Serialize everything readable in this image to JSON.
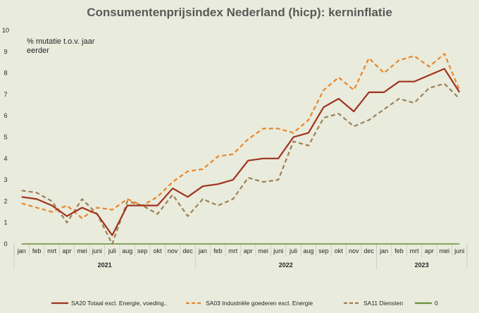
{
  "chart_data": {
    "type": "line",
    "title": "Consumentenprijsindex Nederland (hicp): kerninflatie",
    "ylabel_lines": [
      "% mutatie t.o.v. jaar",
      "eerder"
    ],
    "ylim": [
      0,
      10
    ],
    "yticks": [
      "0",
      "1",
      "2",
      "3",
      "4",
      "5",
      "6",
      "7",
      "8",
      "9",
      "10"
    ],
    "categories": [
      "jan",
      "feb",
      "mrt",
      "apr",
      "mei",
      "juni",
      "juli",
      "aug",
      "sep",
      "okt",
      "nov",
      "dec",
      "jan",
      "feb",
      "mrt",
      "apr",
      "mei",
      "juni",
      "juli",
      "aug",
      "sep",
      "okt",
      "nov",
      "dec",
      "jan",
      "feb",
      "mrt",
      "apr",
      "mei",
      "juni"
    ],
    "years": [
      {
        "label": "2021",
        "start": 0,
        "end": 11
      },
      {
        "label": "2022",
        "start": 12,
        "end": 23
      },
      {
        "label": "2023",
        "start": 24,
        "end": 29
      }
    ],
    "grid": false,
    "legend_position": "bottom",
    "series": [
      {
        "name": "SA20 Totaal excl. Energie, voeding..",
        "color": "#a0321e",
        "dash": "solid",
        "values": [
          2.2,
          2.1,
          1.8,
          1.3,
          1.7,
          1.4,
          0.4,
          1.8,
          1.8,
          1.8,
          2.6,
          2.2,
          2.7,
          2.8,
          3.0,
          3.9,
          4.0,
          4.0,
          5.0,
          5.2,
          6.4,
          6.8,
          6.2,
          7.1,
          7.1,
          7.6,
          7.6,
          7.9,
          8.2,
          7.1
        ]
      },
      {
        "name": "SA03 Industriële goederen excl. Energie",
        "color": "#e8862a",
        "dash": "dashed",
        "values": [
          1.9,
          1.7,
          1.5,
          1.8,
          1.2,
          1.7,
          1.6,
          2.1,
          1.8,
          2.2,
          2.9,
          3.4,
          3.5,
          4.1,
          4.2,
          4.9,
          5.4,
          5.4,
          5.2,
          5.8,
          7.2,
          7.8,
          7.2,
          8.7,
          8.0,
          8.6,
          8.8,
          8.3,
          8.9,
          7.2
        ]
      },
      {
        "name": "SA11 Diensten",
        "color": "#9b8058",
        "dash": "dashed",
        "values": [
          2.5,
          2.4,
          2.0,
          1.0,
          2.1,
          1.4,
          0.0,
          2.0,
          1.8,
          1.4,
          2.3,
          1.3,
          2.1,
          1.8,
          2.1,
          3.1,
          2.9,
          3.0,
          4.8,
          4.6,
          5.9,
          6.1,
          5.5,
          5.8,
          6.3,
          6.8,
          6.6,
          7.3,
          7.5,
          6.8
        ]
      },
      {
        "name": "0",
        "color": "#6b8e3a",
        "dash": "solid",
        "values": [
          0,
          0,
          0,
          0,
          0,
          0,
          0,
          0,
          0,
          0,
          0,
          0,
          0,
          0,
          0,
          0,
          0,
          0,
          0,
          0,
          0,
          0,
          0,
          0,
          0,
          0,
          0,
          0,
          0,
          0
        ]
      }
    ]
  }
}
